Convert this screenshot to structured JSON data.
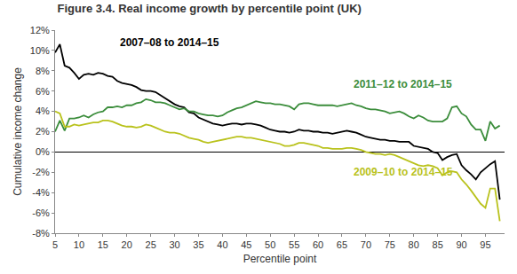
{
  "chart_data": {
    "type": "line",
    "title": "Figure 3.4. Real income growth by percentile point (UK)",
    "x_label": "Percentile point",
    "y_label": "Cumulative income change",
    "x": [
      5,
      6,
      7,
      8,
      9,
      10,
      11,
      12,
      13,
      14,
      15,
      16,
      17,
      18,
      19,
      20,
      21,
      22,
      23,
      24,
      25,
      26,
      27,
      28,
      29,
      30,
      31,
      32,
      33,
      34,
      35,
      36,
      37,
      38,
      39,
      40,
      41,
      42,
      43,
      44,
      45,
      46,
      47,
      48,
      49,
      50,
      51,
      52,
      53,
      54,
      55,
      56,
      57,
      58,
      59,
      60,
      61,
      62,
      63,
      64,
      65,
      66,
      67,
      68,
      69,
      70,
      71,
      72,
      73,
      74,
      75,
      76,
      77,
      78,
      79,
      80,
      81,
      82,
      83,
      84,
      85,
      86,
      87,
      88,
      89,
      90,
      91,
      92,
      93,
      94,
      95,
      96,
      97,
      98
    ],
    "series": [
      {
        "name": "2007–08 to 2014–15",
        "color": "#000000",
        "values": [
          9.8,
          10.6,
          8.5,
          8.3,
          7.8,
          7.2,
          7.6,
          7.7,
          7.6,
          7.8,
          7.7,
          7.5,
          7.4,
          7.0,
          6.8,
          6.7,
          6.6,
          6.4,
          6.1,
          6.0,
          6.0,
          5.9,
          5.6,
          5.3,
          5.0,
          4.7,
          4.5,
          4.4,
          3.9,
          3.8,
          3.4,
          3.2,
          3.0,
          2.8,
          2.7,
          2.6,
          2.7,
          2.8,
          2.8,
          2.7,
          2.8,
          2.8,
          2.7,
          2.6,
          2.4,
          2.2,
          2.1,
          2.0,
          2.0,
          1.9,
          2.0,
          2.2,
          2.1,
          2.1,
          2.0,
          2.0,
          1.9,
          1.9,
          1.8,
          1.9,
          2.0,
          2.1,
          2.0,
          1.9,
          1.7,
          1.5,
          1.4,
          1.3,
          1.2,
          1.2,
          1.1,
          1.1,
          1.0,
          1.0,
          1.0,
          0.6,
          0.5,
          0.4,
          0.3,
          0.0,
          -0.1,
          -0.8,
          -0.5,
          -0.3,
          -0.2,
          -1.3,
          -1.8,
          -2.2,
          -2.7,
          -2.0,
          -1.6,
          -1.2,
          -0.9,
          -4.7
        ]
      },
      {
        "name": "2011–12 to 2014–15",
        "color": "#3b8d3b",
        "values": [
          2.0,
          3.1,
          2.1,
          3.3,
          3.3,
          3.4,
          3.6,
          3.4,
          3.7,
          3.9,
          4.0,
          4.4,
          4.4,
          4.5,
          4.4,
          4.6,
          4.6,
          4.8,
          4.9,
          5.2,
          5.1,
          4.9,
          4.9,
          4.8,
          4.6,
          4.4,
          4.2,
          4.3,
          4.0,
          4.0,
          3.8,
          3.7,
          3.6,
          3.6,
          3.5,
          3.6,
          3.9,
          4.1,
          4.3,
          4.4,
          4.6,
          4.8,
          5.0,
          4.9,
          4.8,
          4.8,
          4.7,
          4.7,
          4.6,
          4.5,
          4.2,
          4.7,
          4.8,
          4.8,
          4.7,
          4.6,
          4.6,
          4.6,
          4.6,
          4.5,
          4.6,
          4.7,
          4.8,
          4.6,
          4.5,
          4.3,
          4.2,
          4.2,
          4.1,
          4.0,
          3.8,
          3.9,
          4.0,
          3.8,
          3.5,
          3.3,
          3.6,
          3.4,
          3.1,
          3.0,
          3.0,
          3.0,
          3.3,
          4.4,
          4.5,
          3.8,
          3.5,
          2.7,
          2.2,
          2.2,
          1.1,
          3.0,
          2.3,
          2.6
        ]
      },
      {
        "name": "2009–10 to 2014–15",
        "color": "#b9c21c",
        "values": [
          4.0,
          3.8,
          2.5,
          2.5,
          2.7,
          2.6,
          2.7,
          2.8,
          2.9,
          2.9,
          3.1,
          3.1,
          3.0,
          2.8,
          2.6,
          2.5,
          2.5,
          2.4,
          2.5,
          2.7,
          2.6,
          2.4,
          2.2,
          2.0,
          1.9,
          1.9,
          1.8,
          1.6,
          1.4,
          1.3,
          1.2,
          1.0,
          0.9,
          1.0,
          1.1,
          1.2,
          1.3,
          1.4,
          1.5,
          1.5,
          1.4,
          1.4,
          1.3,
          1.2,
          1.1,
          1.0,
          0.9,
          0.8,
          0.6,
          0.6,
          0.7,
          0.9,
          0.9,
          0.8,
          0.7,
          0.6,
          0.4,
          0.4,
          0.3,
          0.3,
          0.3,
          0.4,
          0.4,
          0.3,
          0.2,
          0.0,
          -0.1,
          -0.2,
          -0.2,
          -0.3,
          -0.2,
          -0.3,
          -0.5,
          -0.7,
          -0.9,
          -1.1,
          -1.3,
          -1.4,
          -1.3,
          -1.4,
          -1.6,
          -2.3,
          -2.0,
          -1.9,
          -2.0,
          -2.7,
          -3.2,
          -3.8,
          -4.5,
          -5.1,
          -5.5,
          -3.6,
          -3.6,
          -6.8
        ]
      }
    ],
    "xlim": [
      5,
      99
    ],
    "xticks": [
      5,
      10,
      15,
      20,
      25,
      30,
      35,
      40,
      45,
      50,
      55,
      60,
      65,
      70,
      75,
      80,
      85,
      90,
      95
    ],
    "ylim": [
      -8,
      12
    ],
    "yticks": [
      {
        "value": -8,
        "label": "-8%"
      },
      {
        "value": -6,
        "label": "-6%"
      },
      {
        "value": -4,
        "label": "-4%"
      },
      {
        "value": -2,
        "label": "-2%"
      },
      {
        "value": 0,
        "label": "0%"
      },
      {
        "value": 2,
        "label": "2%"
      },
      {
        "value": 4,
        "label": "4%"
      },
      {
        "value": 6,
        "label": "6%"
      },
      {
        "value": 8,
        "label": "8%"
      },
      {
        "value": 10,
        "label": "10%"
      },
      {
        "value": 12,
        "label": "12%"
      }
    ],
    "grid": false
  }
}
